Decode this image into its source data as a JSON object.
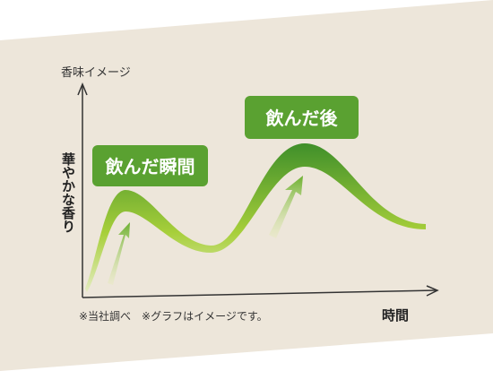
{
  "diagram": {
    "title": "香味イメージ",
    "y_label": "華やかな香り",
    "x_label": "時間",
    "labels": [
      "飲んだ瞬間",
      "飲んだ後"
    ],
    "note": "※当社調べ　※グラフはイメージです。"
  }
}
